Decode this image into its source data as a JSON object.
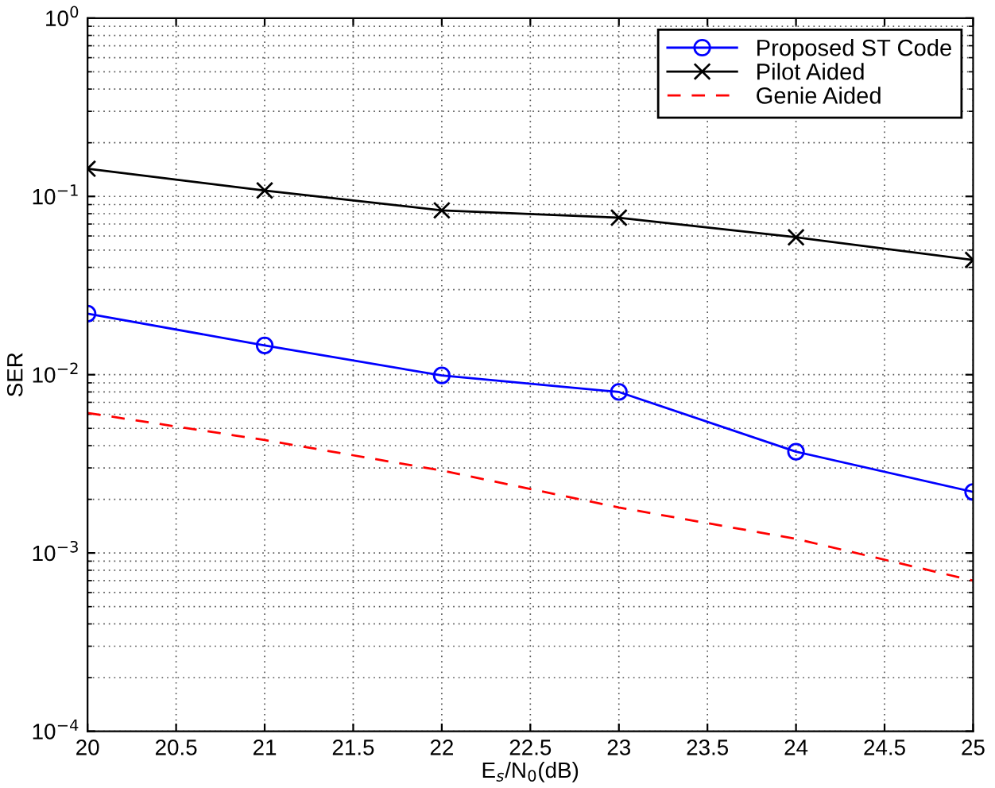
{
  "chart_data": {
    "type": "line",
    "xlabel": "E$_{s}$/N$_{0}$(dB)",
    "ylabel": "SER",
    "log": "y",
    "grid": true,
    "legend": "top right",
    "x": [
      20,
      21,
      22,
      23,
      24,
      25
    ],
    "xlim": [
      20,
      25
    ],
    "xticks": [
      20,
      20.5,
      21,
      21.5,
      22,
      22.5,
      23,
      23.5,
      24,
      24.5,
      25
    ],
    "ylim": [
      0.0001,
      1
    ],
    "yticks": [
      {
        "value": 0.0001,
        "label": "10$^{−4}$"
      },
      {
        "value": 0.001,
        "label": "10$^{−3}$"
      },
      {
        "value": 0.01,
        "label": "10$^{−2}$"
      },
      {
        "value": 0.1,
        "label": "10$^{−1}$"
      },
      {
        "value": 1,
        "label": "10$^{0}$"
      }
    ],
    "series": [
      {
        "name": "Proposed ST Code",
        "color": "#0000ff",
        "marker": "circle",
        "line_style": "solid",
        "values": [
          0.022,
          0.0146,
          0.0099,
          0.008,
          0.0037,
          0.0022
        ]
      },
      {
        "name": "Pilot Aided",
        "color": "#000000",
        "marker": "cross",
        "line_style": "solid",
        "values": [
          0.143,
          0.108,
          0.0835,
          0.076,
          0.059,
          0.044
        ]
      },
      {
        "name": "Genie Aided",
        "color": "#ff0000",
        "marker": "none",
        "line_style": "dashed",
        "values": [
          0.0061,
          0.0043,
          0.0029,
          0.0018,
          0.0012,
          0.0007
        ]
      }
    ]
  }
}
